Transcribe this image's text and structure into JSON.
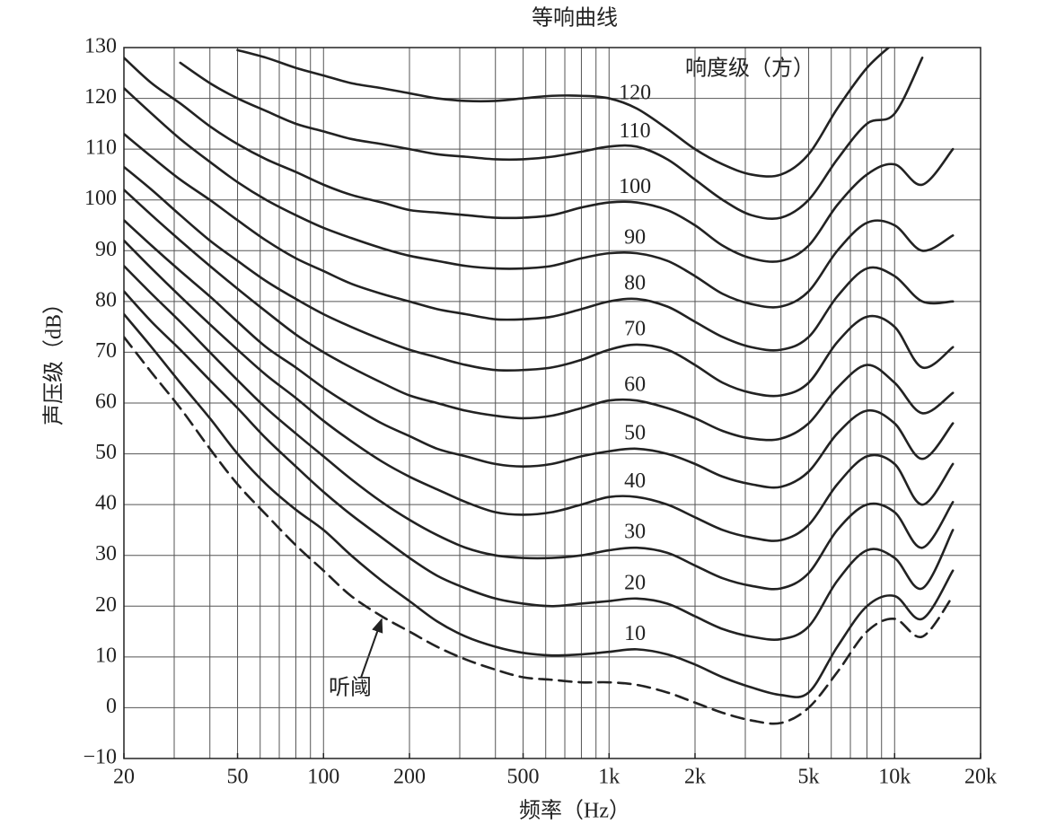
{
  "chart_data": {
    "type": "line",
    "title": "等响曲线",
    "x_label": "频率（Hz）",
    "y_label": "声压级（dB）",
    "annotation": "响度级（方）",
    "log_x": true,
    "grid": true,
    "xlim": [
      20,
      20000
    ],
    "ylim": [
      -10,
      130
    ],
    "xticks": [
      20,
      50,
      100,
      200,
      500,
      {
        "value": 1000,
        "label": "1k"
      },
      {
        "value": 2000,
        "label": "2k"
      },
      {
        "value": 5000,
        "label": "5k"
      },
      {
        "value": 10000,
        "label": "10k"
      },
      {
        "value": 20000,
        "label": "20k"
      }
    ],
    "x_gridlines": [
      20,
      30,
      40,
      50,
      60,
      70,
      80,
      90,
      100,
      200,
      300,
      400,
      500,
      600,
      700,
      800,
      900,
      1000,
      2000,
      3000,
      4000,
      5000,
      6000,
      7000,
      8000,
      9000,
      10000,
      20000
    ],
    "yticks": [
      {
        "value": -10,
        "label": "−10"
      },
      0,
      10,
      20,
      30,
      40,
      50,
      60,
      70,
      80,
      90,
      100,
      110,
      120,
      130
    ],
    "x": [
      20,
      25,
      31.5,
      40,
      50,
      63,
      80,
      100,
      125,
      160,
      200,
      250,
      315,
      400,
      500,
      630,
      800,
      1000,
      1250,
      1600,
      2000,
      2500,
      3150,
      4000,
      5000,
      6300,
      8000,
      10000,
      12500,
      16000
    ],
    "series": [
      {
        "name": "120",
        "color": "#222222",
        "dashed": false,
        "values": [
          null,
          null,
          null,
          null,
          129.5,
          128,
          126,
          124.5,
          123,
          122,
          121,
          120,
          119.5,
          119.5,
          120,
          120.5,
          120.5,
          120,
          118,
          114,
          110,
          107,
          105,
          105,
          109,
          118,
          126,
          131,
          null,
          null
        ]
      },
      {
        "name": "110",
        "color": "#222222",
        "dashed": false,
        "values": [
          null,
          null,
          127,
          123,
          120,
          117.5,
          115,
          113.5,
          112,
          111,
          110,
          109,
          108.5,
          108,
          108,
          108.5,
          109.5,
          110.5,
          110.5,
          108,
          104,
          100,
          97,
          96.5,
          100,
          108,
          115,
          117,
          128,
          null
        ]
      },
      {
        "name": "100",
        "color": "#222222",
        "dashed": false,
        "values": [
          128,
          123,
          119,
          114.5,
          111,
          108,
          105.5,
          103,
          101,
          99.5,
          98,
          97.5,
          97,
          96.5,
          96.5,
          97,
          98.5,
          99.5,
          99.5,
          98,
          95,
          91,
          88.5,
          88,
          91,
          99,
          105,
          107,
          103,
          110
        ]
      },
      {
        "name": "90",
        "color": "#222222",
        "dashed": false,
        "values": [
          122,
          117,
          112,
          107.5,
          103.5,
          100,
          97,
          94.5,
          92.5,
          90.5,
          89,
          88,
          87,
          86.5,
          86.5,
          87,
          88.5,
          89.5,
          89.5,
          88,
          85,
          81.5,
          79.5,
          79,
          82,
          90,
          95.5,
          95,
          90,
          93
        ]
      },
      {
        "name": "80",
        "color": "#222222",
        "dashed": false,
        "values": [
          113,
          108.5,
          104,
          100,
          96,
          92,
          88.5,
          86,
          83.5,
          81.5,
          80,
          78.5,
          77.5,
          76.5,
          76.5,
          77,
          78.5,
          80,
          80.5,
          79,
          76,
          73,
          71,
          70.5,
          73,
          81,
          86.5,
          85,
          80,
          80
        ]
      },
      {
        "name": "70",
        "color": "#222222",
        "dashed": false,
        "values": [
          106.5,
          102,
          97,
          92,
          88,
          84,
          80.5,
          77.5,
          75,
          72.5,
          70.5,
          69,
          67.5,
          66.5,
          66.5,
          67,
          68.5,
          70.5,
          71.5,
          70.5,
          67.5,
          64,
          62,
          61.5,
          64,
          72,
          77,
          75,
          67,
          71
        ]
      },
      {
        "name": "60",
        "color": "#222222",
        "dashed": false,
        "values": [
          102,
          97,
          92,
          87,
          82.5,
          78,
          73.5,
          70,
          67,
          64,
          61.5,
          60,
          58.5,
          57.5,
          57,
          57.5,
          59,
          60.5,
          60.5,
          59,
          57,
          54.5,
          53,
          53,
          56,
          63,
          67.5,
          64,
          58,
          62
        ]
      },
      {
        "name": "50",
        "color": "#222222",
        "dashed": false,
        "values": [
          96,
          91,
          86,
          81,
          76,
          71,
          67,
          63,
          59.5,
          56,
          53.5,
          51,
          49.5,
          48,
          47.5,
          48,
          49.5,
          50.5,
          51,
          50,
          48,
          45.5,
          44,
          43.5,
          46.5,
          54,
          58.5,
          56,
          49,
          56
        ]
      },
      {
        "name": "40",
        "color": "#222222",
        "dashed": false,
        "values": [
          92,
          86.5,
          81,
          75.5,
          70.5,
          65.5,
          61,
          56.5,
          52.5,
          48.5,
          45.5,
          43,
          40.5,
          38.5,
          38,
          38.5,
          40,
          41.5,
          41.5,
          40,
          37.5,
          35,
          33.5,
          33,
          36,
          44,
          49.5,
          48,
          40,
          48
        ]
      },
      {
        "name": "30",
        "color": "#222222",
        "dashed": false,
        "values": [
          87,
          81.5,
          76,
          70,
          64.5,
          59,
          54,
          49.5,
          45,
          40.5,
          37,
          34,
          31.5,
          30,
          29.5,
          29.5,
          30,
          31,
          31.5,
          30.5,
          28,
          25.5,
          24,
          23.5,
          26.5,
          35,
          40,
          38.5,
          31.5,
          40.5
        ]
      },
      {
        "name": "20",
        "color": "#222222",
        "dashed": false,
        "values": [
          82,
          76,
          70.5,
          64.5,
          59,
          53,
          47.5,
          42.5,
          38,
          33.5,
          29.5,
          26,
          23.5,
          21.5,
          20.5,
          20,
          20.5,
          21,
          21.5,
          20.5,
          18,
          15.5,
          14,
          13.5,
          16,
          25,
          31,
          29.5,
          23.5,
          35
        ]
      },
      {
        "name": "10",
        "color": "#222222",
        "dashed": false,
        "values": [
          77.5,
          71,
          64,
          57,
          50,
          44,
          39,
          35,
          30,
          25,
          21,
          17,
          14,
          12,
          10.8,
          10.3,
          10.5,
          11,
          11.5,
          10.5,
          8.5,
          6,
          4,
          2.5,
          3,
          12,
          20,
          22,
          17.5,
          27
        ]
      },
      {
        "name": "听阈",
        "color": "#222222",
        "dashed": true,
        "values": [
          73,
          66,
          59,
          51,
          44,
          38,
          32,
          27,
          22,
          18,
          15,
          12,
          9.5,
          7.5,
          6,
          5.5,
          5,
          5,
          4.5,
          3,
          1,
          -1,
          -2.5,
          -3,
          0,
          7,
          15,
          17.5,
          14,
          22
        ]
      }
    ]
  }
}
